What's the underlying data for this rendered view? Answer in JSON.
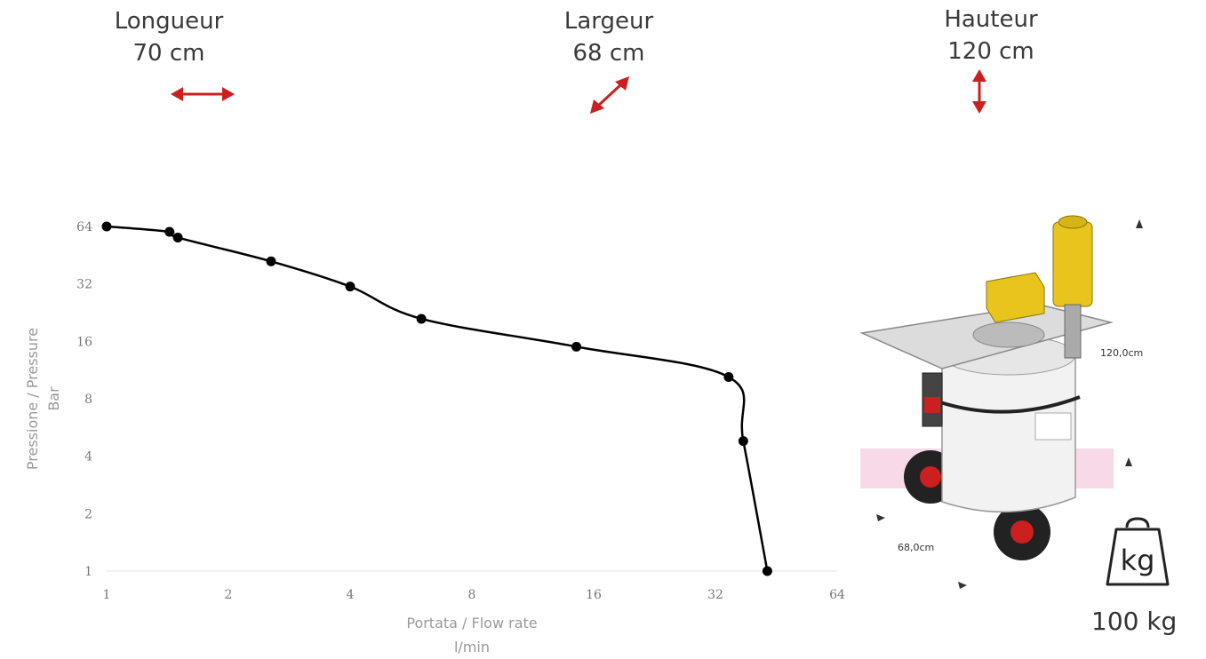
{
  "dimensions": {
    "length": {
      "label": "Longueur",
      "value": "70 cm"
    },
    "width": {
      "label": "Largeur",
      "value": "68 cm"
    },
    "height": {
      "label": "Hauteur",
      "value": "120 cm"
    }
  },
  "machine_labels": {
    "height": "120,0cm",
    "width": "68,0cm"
  },
  "weight": {
    "value": "100 kg",
    "icon_text": "kg"
  },
  "colors": {
    "arrow": "#cc1f1f",
    "curve": "#000000",
    "tank_yellow": "#e8c51c",
    "grid": "#e0e0e0"
  },
  "chart_data": {
    "type": "line",
    "title": "",
    "xlabel": "Portata / Flow rate",
    "xlabel_unit": "l/min",
    "ylabel": "Pressione / Pressure",
    "ylabel_unit": "Bar",
    "x_scale": "log2",
    "y_scale": "log2",
    "xlim": [
      1,
      64
    ],
    "ylim": [
      1,
      64
    ],
    "x_ticks": [
      1,
      2,
      4,
      8,
      16,
      32,
      64
    ],
    "y_ticks": [
      1,
      2,
      4,
      8,
      16,
      32,
      64
    ],
    "grid": false,
    "series": [
      {
        "x": [
          1,
          1.43,
          1.5,
          2.55,
          4.0,
          6.0,
          14.5,
          34.5,
          37.5,
          43.0
        ],
        "y": [
          64,
          60,
          56,
          42,
          31,
          21,
          15,
          10.4,
          4.8,
          1
        ]
      }
    ]
  }
}
